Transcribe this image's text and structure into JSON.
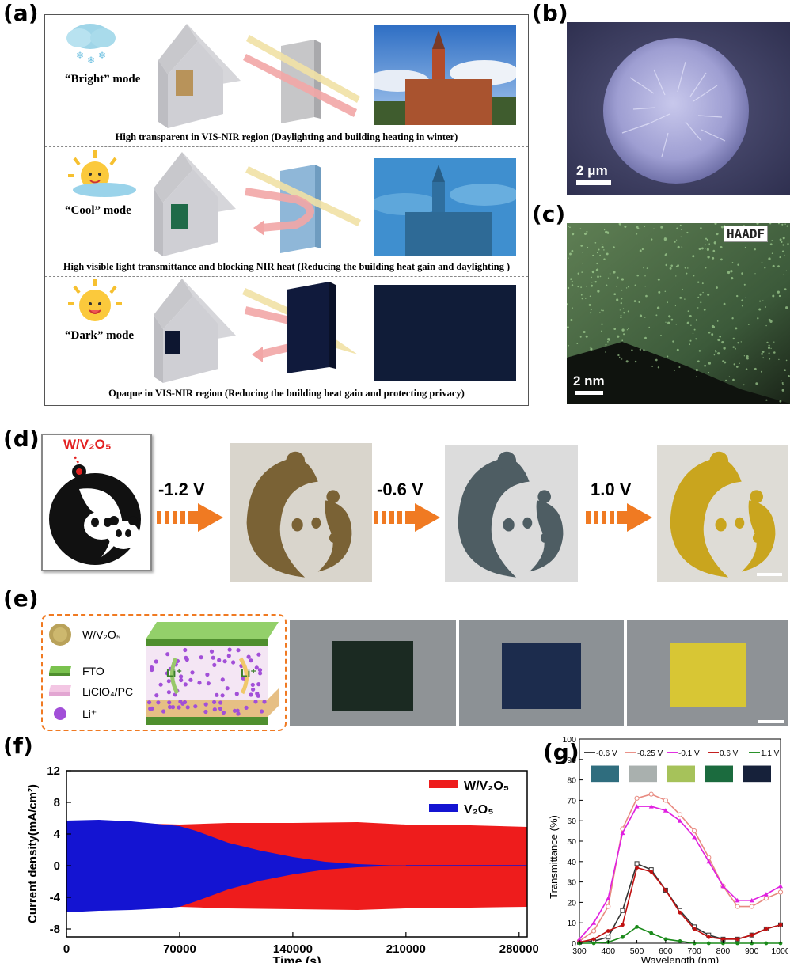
{
  "panel_labels": {
    "a": "(a)",
    "b": "(b)",
    "c": "(c)",
    "d": "(d)",
    "e": "(e)",
    "f": "(f)",
    "g": "(g)"
  },
  "panel_a": {
    "rows": [
      {
        "mode": "“Bright” mode",
        "caption": "High transparent in VIS-NIR region (Daylighting and building heating in winter)"
      },
      {
        "mode": "“Cool” mode",
        "caption": "High visible light transmittance and blocking NIR heat (Reducing the building heat gain and daylighting )"
      },
      {
        "mode": "“Dark” mode",
        "caption": "Opaque in VIS-NIR region (Reducing the building heat gain and protecting privacy)"
      }
    ]
  },
  "panel_b": {
    "scale_bar": "2 μm"
  },
  "panel_c": {
    "scale_bar": "2 nm",
    "badge": "HAADF"
  },
  "panel_d": {
    "material_label": "W/V₂O₅",
    "steps": [
      {
        "voltage": "-1.2 V"
      },
      {
        "voltage": "-0.6 V"
      },
      {
        "voltage": "1.0 V"
      }
    ],
    "colors": {
      "step1": "#7a6235",
      "step2": "#4e5d63",
      "step3": "#c9a51e"
    }
  },
  "panel_e": {
    "legend": [
      {
        "label": "W/V₂O₅",
        "icon": "particle-icon"
      },
      {
        "label": "FTO",
        "icon": "fto-layer-icon"
      },
      {
        "label": "LiClO₄/PC",
        "icon": "electrolyte-icon"
      },
      {
        "label": "Li⁺",
        "icon": "li-ion-icon"
      }
    ],
    "ion_labels": [
      "Li⁺",
      "Li⁺"
    ],
    "device_colors": [
      "#1b2a22",
      "#1c2c4d",
      "#d8c634"
    ]
  },
  "chart_data": [
    {
      "type": "area",
      "panel": "f",
      "xlabel": "Time (s)",
      "ylabel": "Current density(mA/cm²)",
      "xlim": [
        0,
        285000
      ],
      "ylim": [
        -9,
        12
      ],
      "xticks": [
        0,
        70000,
        140000,
        210000,
        280000
      ],
      "yticks": [
        -8,
        -4,
        0,
        4,
        8,
        12
      ],
      "legend_position": "top-right",
      "series": [
        {
          "name": "W/V₂O₅",
          "color": "#ee1c1c",
          "x": [
            0,
            70000,
            100000,
            140000,
            180000,
            210000,
            250000,
            285000
          ],
          "upper": [
            5.6,
            5.2,
            5.4,
            5.4,
            5.5,
            5.2,
            5.1,
            4.9
          ],
          "lower": [
            -5.6,
            -5.2,
            -5.4,
            -5.5,
            -5.6,
            -5.4,
            -5.3,
            -5.2
          ]
        },
        {
          "name": "V₂O₅",
          "color": "#1414d2",
          "x": [
            0,
            20000,
            40000,
            60000,
            70000,
            80000,
            100000,
            120000,
            140000,
            160000,
            180000,
            200000,
            220000,
            285000
          ],
          "upper": [
            5.7,
            5.8,
            5.6,
            5.2,
            5.0,
            4.4,
            2.9,
            1.9,
            1.1,
            0.5,
            0.2,
            0.05,
            0.02,
            0.0
          ],
          "lower": [
            -5.9,
            -5.7,
            -5.6,
            -5.4,
            -5.2,
            -4.5,
            -3.0,
            -1.9,
            -1.1,
            -0.5,
            -0.2,
            -0.05,
            -0.02,
            0.0
          ]
        }
      ]
    },
    {
      "type": "line",
      "panel": "g",
      "xlabel": "Wavelength (nm)",
      "ylabel": "Transmittance (%)",
      "xlim": [
        300,
        1000
      ],
      "ylim": [
        0,
        100
      ],
      "xticks": [
        300,
        400,
        500,
        600,
        700,
        800,
        900,
        1000
      ],
      "yticks": [
        0,
        10,
        20,
        30,
        40,
        50,
        60,
        70,
        80,
        90,
        100
      ],
      "legend_position": "top",
      "x": [
        300,
        350,
        400,
        450,
        500,
        550,
        600,
        650,
        700,
        750,
        800,
        850,
        900,
        950,
        1000
      ],
      "series": [
        {
          "name": "-0.6 V",
          "color": "#333333",
          "marker": "open-square",
          "values": [
            0.5,
            1,
            3,
            16,
            39,
            36,
            26,
            16,
            8,
            4,
            2,
            2,
            4,
            7,
            9
          ]
        },
        {
          "name": "-0.25 V",
          "color": "#e88a80",
          "marker": "open-circle",
          "values": [
            1,
            6,
            18,
            56,
            71,
            73,
            70,
            63,
            55,
            42,
            28,
            18,
            18,
            22,
            25
          ]
        },
        {
          "name": "-0.1 V",
          "color": "#e020e0",
          "marker": "triangle",
          "values": [
            2,
            10,
            22,
            54,
            67,
            67,
            65,
            60,
            52,
            40,
            28,
            21,
            21,
            24,
            28
          ]
        },
        {
          "name": "0.6 V",
          "color": "#c01010",
          "marker": "filled-circle",
          "values": [
            0.5,
            2,
            6,
            9,
            37,
            35,
            26,
            15,
            7,
            3,
            2,
            2,
            4,
            7,
            9
          ]
        },
        {
          "name": "1.1 V",
          "color": "#1a8a1a",
          "marker": "filled-circle",
          "values": [
            0,
            0,
            0.5,
            3,
            8,
            5,
            2,
            1,
            0,
            0,
            0,
            0,
            0,
            0,
            0
          ]
        }
      ],
      "swatch_colors": [
        "#2f6d7e",
        "#a9b0ae",
        "#a6c25a",
        "#1b6b3e",
        "#16213a"
      ]
    }
  ]
}
